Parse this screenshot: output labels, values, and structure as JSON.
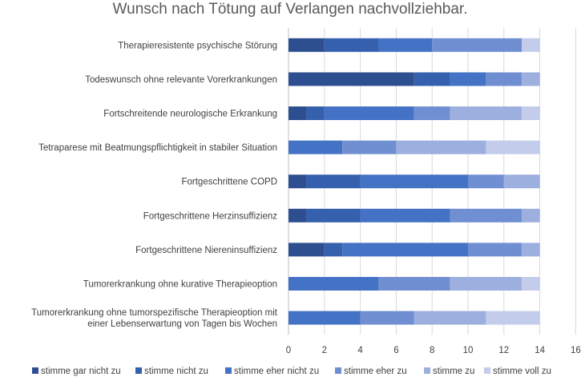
{
  "chart_data": {
    "type": "bar",
    "orientation": "horizontal",
    "stacked": true,
    "title": "Wunsch nach Tötung auf Verlangen nachvollziehbar.",
    "xlabel": "",
    "ylabel": "",
    "xlim": [
      0,
      16
    ],
    "xticks": [
      "0",
      "2",
      "4",
      "6",
      "8",
      "10",
      "12",
      "14",
      "16"
    ],
    "grid": "vertical",
    "legend_position": "bottom",
    "categories": [
      [
        "Therapieresistente psychische Störung"
      ],
      [
        "Todeswunsch ohne relevante Vorerkrankungen"
      ],
      [
        "Fortschreitende neurologische Erkrankung"
      ],
      [
        "Tetraparese mit Beatmungspflichtigkeit in stabiler Situation"
      ],
      [
        "Fortgeschrittene COPD"
      ],
      [
        "Fortgeschrittene Herzinsuffizienz"
      ],
      [
        "Fortgeschrittene Niereninsuffizienz"
      ],
      [
        "Tumorerkrankung ohne kurative Therapieoption"
      ],
      [
        "Tumorerkrankung ohne tumorspezifische Therapieoption mit",
        "einer Lebenserwartung von Tagen bis Wochen"
      ]
    ],
    "series": [
      {
        "name": "stimme gar nicht zu",
        "color": "#2e4f8f",
        "values": [
          2,
          7,
          1,
          0,
          1,
          1,
          2,
          0,
          0
        ]
      },
      {
        "name": "stimme nicht zu",
        "color": "#3560ae",
        "values": [
          3,
          2,
          1,
          0,
          3,
          3,
          1,
          0,
          0
        ]
      },
      {
        "name": "stimme eher nicht zu",
        "color": "#4472c4",
        "values": [
          3,
          2,
          5,
          3,
          6,
          5,
          7,
          5,
          4
        ]
      },
      {
        "name": "stimme eher zu",
        "color": "#6f8fd2",
        "values": [
          5,
          2,
          2,
          3,
          2,
          4,
          3,
          4,
          3
        ]
      },
      {
        "name": "stimme zu",
        "color": "#9dafdf",
        "values": [
          0,
          1,
          4,
          5,
          2,
          1,
          1,
          4,
          4
        ]
      },
      {
        "name": "stimme voll zu",
        "color": "#c3cdeb",
        "values": [
          1,
          0,
          1,
          3,
          0,
          0,
          0,
          1,
          3
        ]
      }
    ]
  }
}
